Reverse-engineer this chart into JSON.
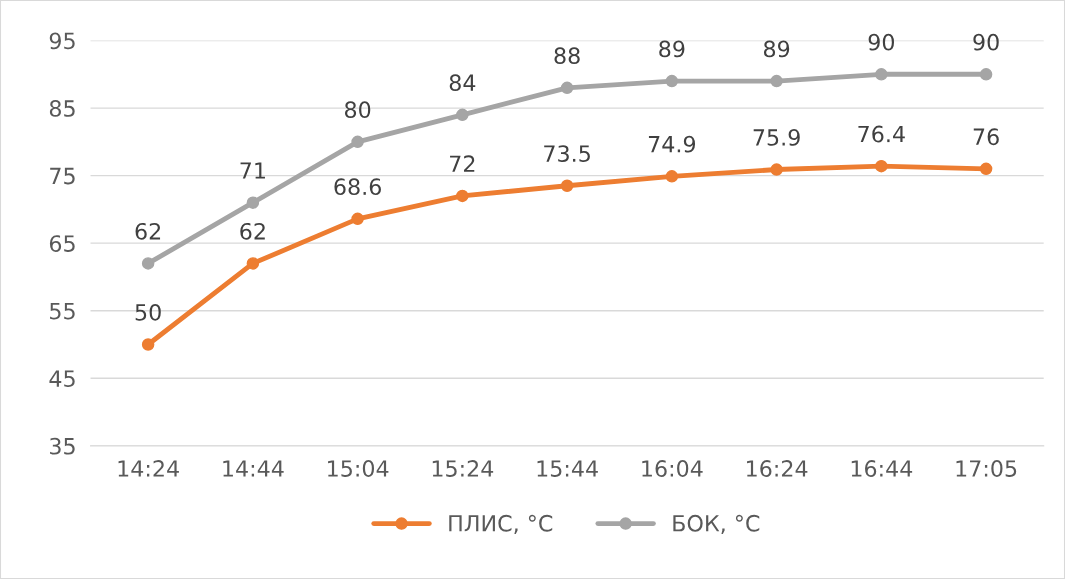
{
  "chart_data": {
    "type": "line",
    "categories": [
      "14:24",
      "14:44",
      "15:04",
      "15:24",
      "15:44",
      "16:04",
      "16:24",
      "16:44",
      "17:05"
    ],
    "series": [
      {
        "name": "ПЛИС, °C",
        "color": "#ed7d31",
        "values": [
          50,
          62,
          68.6,
          72,
          73.5,
          74.9,
          75.9,
          76.4,
          76
        ]
      },
      {
        "name": "БОК, °C",
        "color": "#a5a5a5",
        "values": [
          62,
          71,
          80,
          84,
          88,
          89,
          89,
          90,
          90
        ]
      }
    ],
    "ylim": [
      35,
      95
    ],
    "yticks": [
      35,
      45,
      55,
      65,
      75,
      85,
      95
    ],
    "grid": "y",
    "legend": "bottom",
    "marker": "circle",
    "line_style": "solid",
    "data_labels": true
  }
}
